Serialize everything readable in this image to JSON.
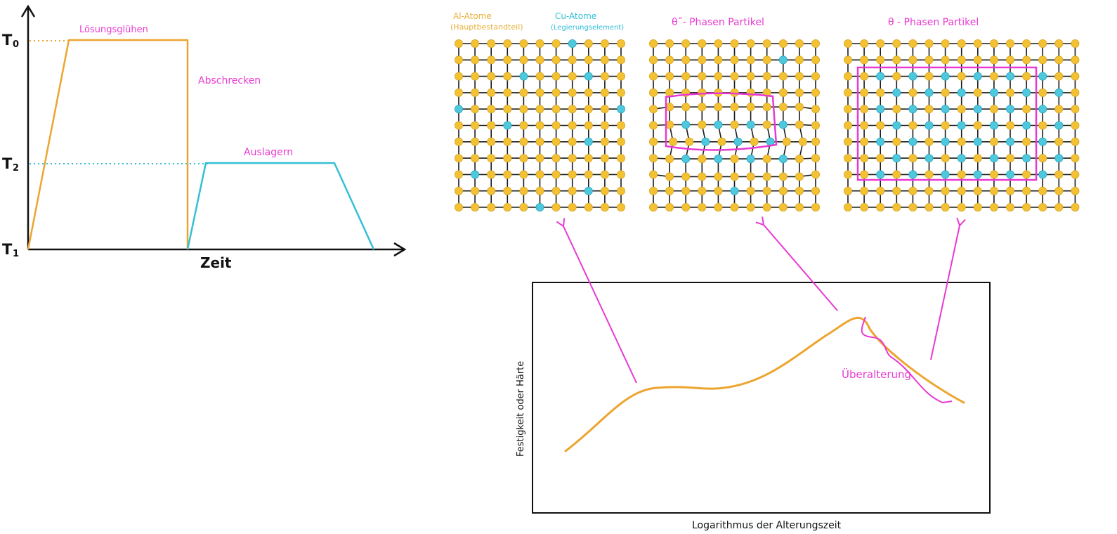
{
  "colors": {
    "orange": "#eca52f",
    "cyan": "#35bfd5",
    "magenta": "#e83ad1",
    "al_atom": "#f2c234",
    "cu_atom": "#4ec8dc",
    "ink": "#111111"
  },
  "heat_treatment": {
    "y_axis_labels": [
      {
        "main": "T",
        "sub": "0"
      },
      {
        "main": "T",
        "sub": "2"
      },
      {
        "main": "T",
        "sub": "1"
      }
    ],
    "x_axis_label": "Zeit",
    "stage_labels": {
      "solution_annealing": "Lösungsglühen",
      "quenching": "Abschrecken",
      "aging": "Auslagern"
    }
  },
  "lattices": {
    "legend": {
      "al": {
        "name": "Al-Atome",
        "note": "(Hauptbestandteil)"
      },
      "cu": {
        "name": "Cu-Atome",
        "note": "(Legierungselement)"
      }
    },
    "theta_double_prime_title": "θ˝- Phasen   Partikel",
    "theta_title": "θ - Phasen   Partikel"
  },
  "aging_curve": {
    "ylabel": "Festigkeit oder Härte",
    "xlabel": "Logarithmus der Alterungszeit",
    "annotation": "Überalterung"
  }
}
